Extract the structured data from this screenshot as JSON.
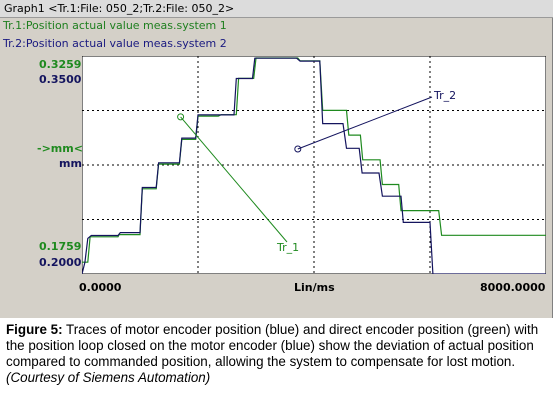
{
  "window": {
    "title": "Graph1 <Tr.1:File: 050_2;Tr.2:File: 050_2>",
    "trace1_label": "Tr.1:Position actual value meas.system 1",
    "trace2_label": "Tr.2:Position actual value meas.system 2"
  },
  "axes": {
    "y_top_green": "0.3259",
    "y_top_blue": "0.3500",
    "y_mid_green": "->mm<-",
    "y_mid_blue": "mm",
    "y_bot_green": "0.1759",
    "y_bot_blue": "0.2000",
    "x_min": "0.0000",
    "x_label": "Lin/ms",
    "x_max": "8000.0000"
  },
  "colors": {
    "green": "#1f8a1f",
    "blue": "#14145e",
    "plot_bg": "#ffffff"
  },
  "chart_data": {
    "type": "line",
    "xlabel": "Lin/ms",
    "ylabel": "mm",
    "xlim": [
      0,
      8000
    ],
    "grid": true,
    "series": [
      {
        "name": "Tr_1",
        "color": "#1f8a1f",
        "ylim": [
          0.1759,
          0.3259
        ],
        "x": [
          0,
          100,
          140,
          620,
          640,
          1000,
          1040,
          1280,
          1320,
          1680,
          1720,
          1960,
          2000,
          2350,
          2400,
          2660,
          2700,
          2960,
          3000,
          3720,
          3760,
          4100,
          4150,
          4560,
          4600,
          4800,
          4840,
          5140,
          5180,
          5460,
          5500,
          6150,
          6200,
          8000
        ],
        "y": [
          0.184,
          0.184,
          0.2015,
          0.2015,
          0.203,
          0.203,
          0.2345,
          0.2345,
          0.2515,
          0.2515,
          0.2685,
          0.2685,
          0.2845,
          0.2845,
          0.2855,
          0.2855,
          0.3105,
          0.3105,
          0.3245,
          0.3245,
          0.3225,
          0.3225,
          0.2885,
          0.2885,
          0.2715,
          0.2715,
          0.2545,
          0.2545,
          0.2375,
          0.2375,
          0.2195,
          0.2195,
          0.2025,
          0.2025
        ]
      },
      {
        "name": "Tr_2",
        "color": "#14145e",
        "ylim": [
          0.2,
          0.35
        ],
        "x": [
          0,
          50,
          100,
          160,
          620,
          660,
          1000,
          1040,
          1280,
          1320,
          1680,
          1720,
          1960,
          2000,
          2620,
          2660,
          2940,
          2980,
          3700,
          3760,
          4100,
          4150,
          4500,
          4560,
          4780,
          4830,
          5120,
          5180,
          5500,
          5540,
          6000,
          6050,
          8000
        ],
        "y": [
          0.2,
          0.208,
          0.2245,
          0.2265,
          0.2265,
          0.2285,
          0.2285,
          0.2595,
          0.2595,
          0.2765,
          0.2765,
          0.2935,
          0.2935,
          0.3095,
          0.3095,
          0.3345,
          0.3345,
          0.3485,
          0.3485,
          0.3465,
          0.3465,
          0.3035,
          0.3035,
          0.2865,
          0.2865,
          0.2695,
          0.2695,
          0.2535,
          0.2535,
          0.2355,
          0.2355,
          0.2,
          0.2
        ]
      }
    ],
    "annotations": [
      {
        "label": "Tr_1",
        "at_x": 1700,
        "at_y": 0.284
      },
      {
        "label": "Tr_2",
        "at_x": 3720,
        "at_y": 0.286
      }
    ]
  },
  "caption": {
    "figure_label": "Figure 5:",
    "text": " Traces of motor encoder position (blue) and direct encoder position (green) with the position loop closed on the motor encoder (blue) show the deviation of actual position compared to commanded position, allowing the system to compensate for lost motion.",
    "credit": "(Courtesy of Siemens Automation)"
  }
}
